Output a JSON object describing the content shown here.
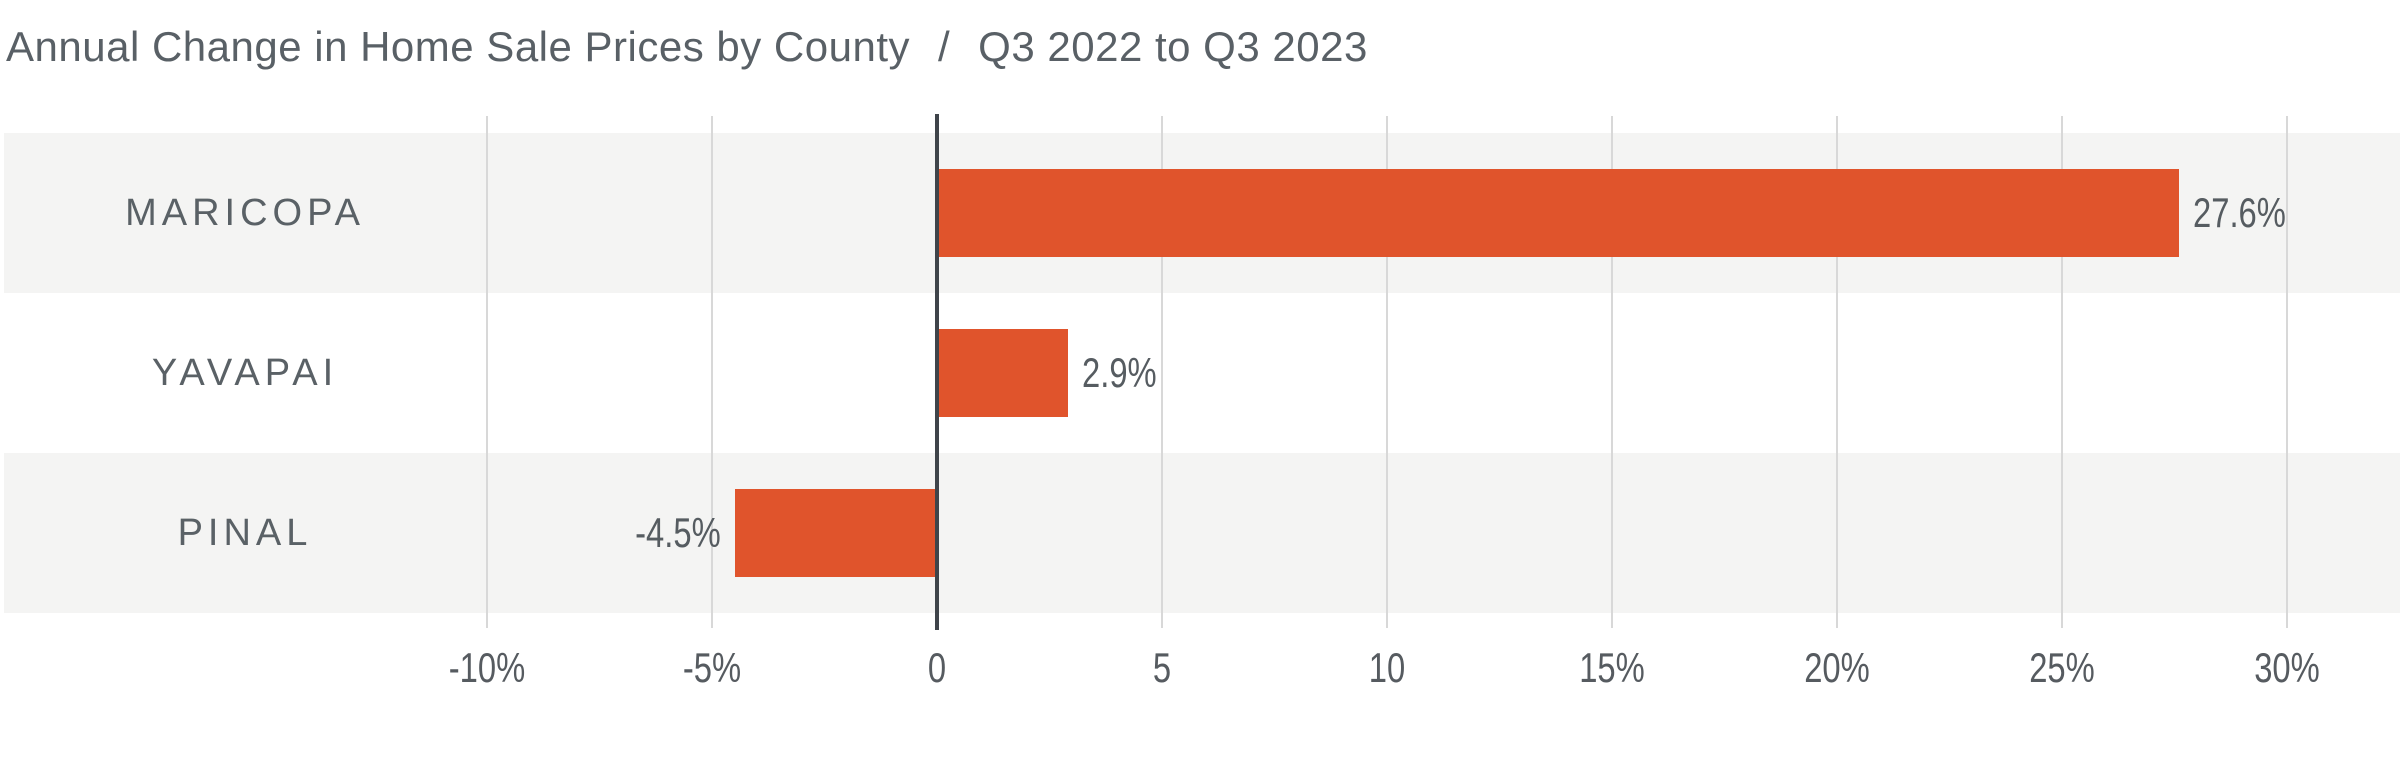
{
  "title": {
    "main": "Annual Change in Home Sale Prices by County",
    "separator": "/",
    "period": "Q3 2022 to Q3 2023"
  },
  "colors": {
    "background": "#FFFFFF",
    "bar": "#E0542C",
    "row_band": "#F4F4F3",
    "gridline": "#D8D8D8",
    "zero_axis": "#3F444A",
    "title_text": "#596066",
    "category_text": "#5A6166",
    "value_text": "#565C61",
    "tick_text": "#565B60"
  },
  "chart_data": {
    "type": "bar",
    "orientation": "horizontal",
    "title": "Annual Change in Home Sale Prices by County / Q3 2022 to Q3 2023",
    "categories": [
      "MARICOPA",
      "YAVAPAI",
      "PINAL"
    ],
    "values": [
      27.6,
      2.9,
      -4.5
    ],
    "value_labels": [
      "27.6%",
      "2.9%",
      "-4.5%"
    ],
    "xlabel": "",
    "ylabel": "",
    "x_ticks": [
      {
        "label": "-10%",
        "value": -10
      },
      {
        "label": "-5%",
        "value": -5
      },
      {
        "label": "0",
        "value": 0
      },
      {
        "label": "5",
        "value": 5
      },
      {
        "label": "10",
        "value": 10
      },
      {
        "label": "15%",
        "value": 15
      },
      {
        "label": "20%",
        "value": 20
      },
      {
        "label": "25%",
        "value": 25
      },
      {
        "label": "30%",
        "value": 30
      }
    ],
    "xlim": [
      -20.7,
      32.5
    ],
    "grid": "vertical-gridlines-on",
    "legend": "none",
    "row_stripes": [
      true,
      false,
      true
    ],
    "units": "percent"
  }
}
